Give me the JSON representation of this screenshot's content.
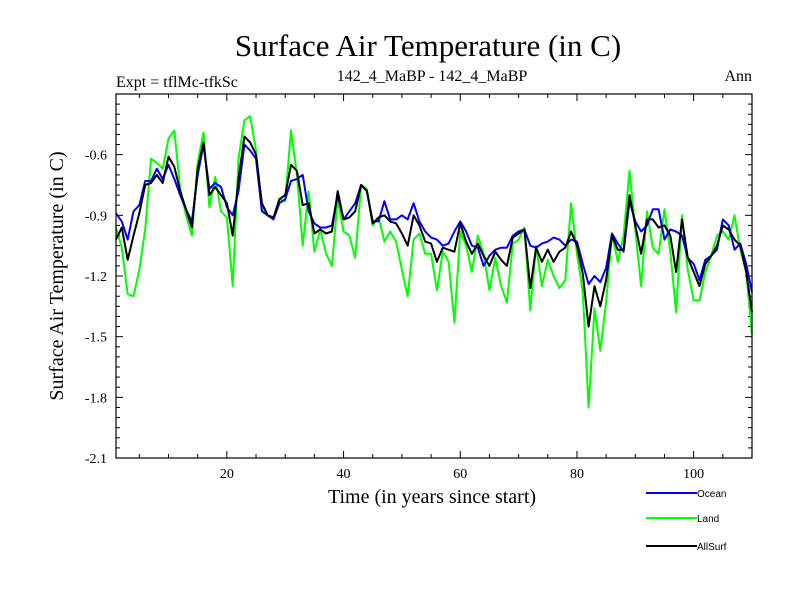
{
  "chart_data": {
    "type": "line",
    "title": "Surface Air Temperature (in C)",
    "subtitle_left": "Expt = tflMc-tfkSc",
    "subtitle_center": "142_4_MaBP - 142_4_MaBP",
    "subtitle_right": "Ann",
    "xlabel": "Time (in years since start)",
    "ylabel": "Surface Air Temperature (in C)",
    "xlim": [
      1,
      110
    ],
    "ylim": [
      -2.1,
      -0.3
    ],
    "xticks": [
      20,
      40,
      60,
      80,
      100
    ],
    "xtick_labels": [
      "20",
      "40",
      "60",
      "80",
      "100"
    ],
    "yticks": [
      -2.1,
      -1.8,
      -1.5,
      -1.2,
      -0.9,
      -0.6
    ],
    "ytick_labels": [
      "-2.1",
      "-1.8",
      "-1.5",
      "-1.2",
      "-0.9",
      "-0.6"
    ],
    "x": [
      1,
      2,
      3,
      4,
      5,
      6,
      7,
      8,
      9,
      10,
      11,
      12,
      13,
      14,
      15,
      16,
      17,
      18,
      19,
      20,
      21,
      22,
      23,
      24,
      25,
      26,
      27,
      28,
      29,
      30,
      31,
      32,
      33,
      34,
      35,
      36,
      37,
      38,
      39,
      40,
      41,
      42,
      43,
      44,
      45,
      46,
      47,
      48,
      49,
      50,
      51,
      52,
      53,
      54,
      55,
      56,
      57,
      58,
      59,
      60,
      61,
      62,
      63,
      64,
      65,
      66,
      67,
      68,
      69,
      70,
      71,
      72,
      73,
      74,
      75,
      76,
      77,
      78,
      79,
      80,
      81,
      82,
      83,
      84,
      85,
      86,
      87,
      88,
      89,
      90,
      91,
      92,
      93,
      94,
      95,
      96,
      97,
      98,
      99,
      100,
      101,
      102,
      103,
      104,
      105,
      106,
      107,
      108,
      109,
      110
    ],
    "series": [
      {
        "name": "Ocean",
        "color": "#0000ff",
        "values": [
          -0.89,
          -0.93,
          -1.02,
          -0.88,
          -0.85,
          -0.73,
          -0.73,
          -0.67,
          -0.72,
          -0.65,
          -0.72,
          -0.8,
          -0.87,
          -0.93,
          -0.7,
          -0.55,
          -0.77,
          -0.74,
          -0.76,
          -0.86,
          -0.9,
          -0.78,
          -0.55,
          -0.58,
          -0.62,
          -0.88,
          -0.9,
          -0.92,
          -0.84,
          -0.82,
          -0.73,
          -0.72,
          -0.7,
          -0.88,
          -0.94,
          -0.96,
          -0.96,
          -0.95,
          -0.8,
          -0.92,
          -0.88,
          -0.84,
          -0.75,
          -0.78,
          -0.93,
          -0.93,
          -0.83,
          -0.92,
          -0.92,
          -0.9,
          -0.92,
          -0.84,
          -0.93,
          -0.98,
          -1.01,
          -1.02,
          -1.05,
          -1.04,
          -0.98,
          -0.93,
          -0.98,
          -1.05,
          -1.06,
          -1.15,
          -1.1,
          -1.07,
          -1.06,
          -1.06,
          -1.0,
          -0.98,
          -0.97,
          -1.05,
          -1.06,
          -1.04,
          -1.03,
          -1.01,
          -1.02,
          -1.05,
          -1.02,
          -1.03,
          -1.14,
          -1.24,
          -1.2,
          -1.23,
          -1.16,
          -0.99,
          -1.04,
          -1.08,
          -0.83,
          -0.93,
          -0.98,
          -0.95,
          -0.87,
          -0.87,
          -1.02,
          -0.97,
          -0.98,
          -1.0,
          -1.11,
          -1.14,
          -1.22,
          -1.12,
          -1.1,
          -1.07,
          -0.92,
          -0.95,
          -1.07,
          -1.04,
          -1.14,
          -1.28
        ]
      },
      {
        "name": "Land",
        "color": "#00ff00",
        "values": [
          -0.96,
          -1.06,
          -1.29,
          -1.3,
          -1.17,
          -0.97,
          -0.62,
          -0.64,
          -0.67,
          -0.52,
          -0.48,
          -0.77,
          -0.9,
          -1.0,
          -0.64,
          -0.49,
          -0.86,
          -0.71,
          -0.88,
          -0.91,
          -1.25,
          -0.62,
          -0.43,
          -0.41,
          -0.58,
          -0.86,
          -0.9,
          -0.92,
          -0.82,
          -0.83,
          -0.48,
          -0.7,
          -1.05,
          -0.78,
          -1.08,
          -0.97,
          -1.09,
          -1.15,
          -0.82,
          -0.98,
          -1.0,
          -1.11,
          -0.75,
          -0.77,
          -0.95,
          -0.91,
          -1.03,
          -0.98,
          -1.03,
          -1.17,
          -1.3,
          -1.02,
          -0.99,
          -1.09,
          -1.09,
          -1.27,
          -1.08,
          -1.13,
          -1.43,
          -0.98,
          -1.05,
          -1.18,
          -1.0,
          -1.09,
          -1.27,
          -1.11,
          -1.25,
          -1.33,
          -1.04,
          -1.02,
          -0.96,
          -1.37,
          -1.05,
          -1.25,
          -1.12,
          -1.2,
          -1.26,
          -1.22,
          -0.84,
          -1.09,
          -1.28,
          -1.85,
          -1.36,
          -1.57,
          -1.33,
          -0.99,
          -1.13,
          -1.0,
          -0.68,
          -0.97,
          -1.25,
          -0.88,
          -1.06,
          -1.09,
          -0.87,
          -1.08,
          -1.38,
          -0.9,
          -1.17,
          -1.32,
          -1.32,
          -1.18,
          -1.1,
          -1.0,
          -0.98,
          -1.02,
          -0.9,
          -1.07,
          -1.18,
          -1.49
        ]
      },
      {
        "name": "AllSurf",
        "color": "#000000",
        "values": [
          -1.02,
          -0.96,
          -1.12,
          -1.0,
          -0.89,
          -0.75,
          -0.74,
          -0.7,
          -0.74,
          -0.61,
          -0.66,
          -0.78,
          -0.87,
          -0.96,
          -0.67,
          -0.54,
          -0.8,
          -0.76,
          -0.8,
          -0.84,
          -1.0,
          -0.72,
          -0.51,
          -0.54,
          -0.6,
          -0.84,
          -0.9,
          -0.91,
          -0.82,
          -0.8,
          -0.65,
          -0.68,
          -0.85,
          -0.84,
          -0.99,
          -0.97,
          -0.99,
          -0.98,
          -0.78,
          -0.92,
          -0.91,
          -0.88,
          -0.75,
          -0.78,
          -0.94,
          -0.91,
          -0.9,
          -0.93,
          -0.94,
          -0.99,
          -1.05,
          -0.9,
          -0.95,
          -1.03,
          -1.04,
          -1.13,
          -1.06,
          -1.07,
          -1.08,
          -0.94,
          -1.03,
          -1.09,
          -1.04,
          -1.1,
          -1.15,
          -1.08,
          -1.12,
          -1.15,
          -1.01,
          -0.99,
          -0.97,
          -1.26,
          -1.06,
          -1.13,
          -1.07,
          -1.13,
          -1.08,
          -1.06,
          -0.98,
          -1.05,
          -1.19,
          -1.45,
          -1.25,
          -1.35,
          -1.22,
          -1.0,
          -1.07,
          -1.07,
          -0.8,
          -0.95,
          -1.09,
          -0.92,
          -0.92,
          -0.96,
          -0.95,
          -1.0,
          -1.18,
          -0.92,
          -1.11,
          -1.18,
          -1.25,
          -1.14,
          -1.1,
          -1.05,
          -0.95,
          -0.97,
          -1.02,
          -1.05,
          -1.18,
          -1.38
        ]
      }
    ],
    "legend": {
      "placement": "bottom-right",
      "entries": [
        "Ocean",
        "Land",
        "AllSurf"
      ]
    }
  }
}
